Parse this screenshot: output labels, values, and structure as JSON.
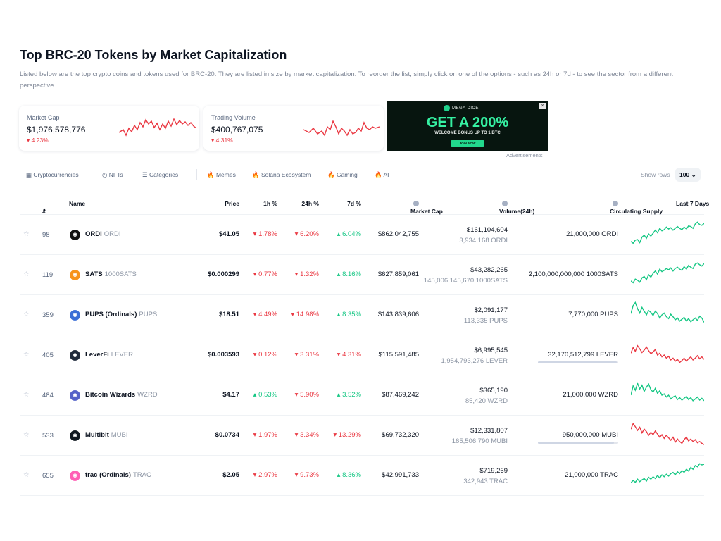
{
  "page": {
    "title": "Top BRC-20 Tokens by Market Capitalization",
    "description": "Listed below are the top crypto coins and tokens used for BRC-20. They are listed in size by market capitalization. To reorder the list, simply click on one of the options - such as 24h or 7d - to see the sector from a different perspective."
  },
  "stats": {
    "market_cap": {
      "label": "Market Cap",
      "value": "$1,976,578,776",
      "change": "4.23%",
      "direction": "down"
    },
    "trading_volume": {
      "label": "Trading Volume",
      "value": "$400,767,075",
      "change": "4.31%",
      "direction": "down"
    }
  },
  "ad": {
    "brand": "MEGA DICE",
    "headline": "GET A 200%",
    "subline": "WELCOME BONUS UP TO 1 BTC",
    "cta": "JOIN NOW",
    "label": "Advertisements"
  },
  "nav": {
    "items": [
      "Cryptocurrencies",
      "NFTs",
      "Categories",
      "Memes",
      "Solana Ecosystem",
      "Gaming",
      "AI"
    ],
    "show_rows_label": "Show rows",
    "rows_value": "100"
  },
  "table": {
    "headers": {
      "rank": "#",
      "name": "Name",
      "price": "Price",
      "h1": "1h %",
      "h24": "24h %",
      "d7": "7d %",
      "market_cap": "Market Cap",
      "volume": "Volume(24h)",
      "supply": "Circulating Supply",
      "last7": "Last 7 Days"
    },
    "rows": [
      {
        "rank": "98",
        "name": "ORDI",
        "symbol": "ORDI",
        "price": "$41.05",
        "h1": "1.78%",
        "h1_dir": "down",
        "h24": "6.20%",
        "h24_dir": "down",
        "d7": "6.04%",
        "d7_dir": "up",
        "market_cap": "$862,042,755",
        "volume": "$161,104,604",
        "volume_sub": "3,934,168 ORDI",
        "supply": "21,000,000 ORDI",
        "supply_fraction": null,
        "logo_color": "#111111",
        "trend": "up",
        "spark": [
          0.72,
          0.78,
          0.68,
          0.66,
          0.76,
          0.58,
          0.52,
          0.62,
          0.48,
          0.55,
          0.46,
          0.36,
          0.44,
          0.3,
          0.38,
          0.34,
          0.26,
          0.32,
          0.28,
          0.36,
          0.3,
          0.24,
          0.3,
          0.34,
          0.26,
          0.32,
          0.22,
          0.24,
          0.3,
          0.16,
          0.1,
          0.18,
          0.2,
          0.14
        ]
      },
      {
        "rank": "119",
        "name": "SATS",
        "symbol": "1000SATS",
        "price": "$0.000299",
        "h1": "0.77%",
        "h1_dir": "down",
        "h24": "1.32%",
        "h24_dir": "down",
        "d7": "8.16%",
        "d7_dir": "up",
        "market_cap": "$627,859,061",
        "volume": "$43,282,265",
        "volume_sub": "145,006,145,670 1000SATS",
        "supply": "2,100,000,000,000 1000SATS",
        "supply_fraction": null,
        "logo_color": "#f7931a",
        "trend": "up",
        "spark": [
          0.7,
          0.76,
          0.64,
          0.68,
          0.74,
          0.6,
          0.56,
          0.66,
          0.5,
          0.58,
          0.46,
          0.38,
          0.48,
          0.32,
          0.4,
          0.36,
          0.3,
          0.34,
          0.28,
          0.38,
          0.3,
          0.26,
          0.32,
          0.36,
          0.24,
          0.32,
          0.2,
          0.26,
          0.3,
          0.16,
          0.12,
          0.18,
          0.22,
          0.14
        ]
      },
      {
        "rank": "359",
        "name": "PUPS (Ordinals)",
        "symbol": "PUPS",
        "price": "$18.51",
        "h1": "4.49%",
        "h1_dir": "down",
        "h24": "14.98%",
        "h24_dir": "down",
        "d7": "8.35%",
        "d7_dir": "up",
        "market_cap": "$143,839,606",
        "volume": "$2,091,177",
        "volume_sub": "113,335 PUPS",
        "supply": "7,770,000 PUPS",
        "supply_fraction": null,
        "logo_color": "#3b6fd6",
        "trend": "up",
        "spark": [
          0.46,
          0.2,
          0.1,
          0.3,
          0.44,
          0.26,
          0.38,
          0.5,
          0.36,
          0.42,
          0.52,
          0.38,
          0.46,
          0.6,
          0.5,
          0.44,
          0.56,
          0.62,
          0.48,
          0.56,
          0.66,
          0.6,
          0.7,
          0.64,
          0.58,
          0.7,
          0.62,
          0.72,
          0.66,
          0.6,
          0.68,
          0.54,
          0.6,
          0.74
        ]
      },
      {
        "rank": "405",
        "name": "LeverFi",
        "symbol": "LEVER",
        "price": "$0.003593",
        "h1": "0.12%",
        "h1_dir": "down",
        "h24": "3.31%",
        "h24_dir": "down",
        "d7": "4.31%",
        "d7_dir": "down",
        "market_cap": "$115,591,485",
        "volume": "$6,995,545",
        "volume_sub": "1,954,793,276 LEVER",
        "supply": "32,170,512,799 LEVER",
        "supply_fraction": 0.98,
        "logo_color": "#202b3c",
        "trend": "down",
        "spark": [
          0.44,
          0.26,
          0.38,
          0.2,
          0.3,
          0.42,
          0.34,
          0.24,
          0.36,
          0.46,
          0.4,
          0.32,
          0.5,
          0.44,
          0.56,
          0.5,
          0.6,
          0.54,
          0.66,
          0.6,
          0.7,
          0.64,
          0.74,
          0.68,
          0.6,
          0.7,
          0.62,
          0.56,
          0.66,
          0.6,
          0.52,
          0.62,
          0.56,
          0.64
        ]
      },
      {
        "rank": "484",
        "name": "Bitcoin Wizards",
        "symbol": "WZRD",
        "price": "$4.17",
        "h1": "0.53%",
        "h1_dir": "up",
        "h24": "5.90%",
        "h24_dir": "down",
        "d7": "3.52%",
        "d7_dir": "up",
        "market_cap": "$87,469,242",
        "volume": "$365,190",
        "volume_sub": "85,420 WZRD",
        "supply": "21,000,000 WZRD",
        "supply_fraction": null,
        "logo_color": "#5563c8",
        "trend": "up",
        "spark": [
          0.5,
          0.2,
          0.34,
          0.12,
          0.3,
          0.18,
          0.38,
          0.24,
          0.14,
          0.32,
          0.4,
          0.28,
          0.44,
          0.36,
          0.5,
          0.46,
          0.56,
          0.5,
          0.62,
          0.56,
          0.52,
          0.64,
          0.58,
          0.66,
          0.6,
          0.54,
          0.64,
          0.58,
          0.68,
          0.62,
          0.56,
          0.66,
          0.6,
          0.68
        ]
      },
      {
        "rank": "533",
        "name": "Multibit",
        "symbol": "MUBI",
        "price": "$0.0734",
        "h1": "1.97%",
        "h1_dir": "down",
        "h24": "3.34%",
        "h24_dir": "down",
        "d7": "13.29%",
        "d7_dir": "down",
        "market_cap": "$69,732,320",
        "volume": "$12,331,807",
        "volume_sub": "165,506,790 MUBI",
        "supply": "950,000,000 MUBI",
        "supply_fraction": 0.95,
        "logo_color": "#101820",
        "trend": "down",
        "spark": [
          0.3,
          0.12,
          0.22,
          0.34,
          0.24,
          0.42,
          0.3,
          0.38,
          0.5,
          0.4,
          0.48,
          0.36,
          0.46,
          0.56,
          0.48,
          0.6,
          0.5,
          0.58,
          0.66,
          0.56,
          0.72,
          0.62,
          0.7,
          0.76,
          0.64,
          0.56,
          0.68,
          0.62,
          0.7,
          0.64,
          0.74,
          0.7,
          0.76,
          0.8
        ]
      },
      {
        "rank": "655",
        "name": "trac (Ordinals)",
        "symbol": "TRAC",
        "price": "$2.05",
        "h1": "2.97%",
        "h1_dir": "down",
        "h24": "9.73%",
        "h24_dir": "down",
        "d7": "8.36%",
        "d7_dir": "up",
        "market_cap": "$42,991,733",
        "volume": "$719,269",
        "volume_sub": "342,943 TRAC",
        "supply": "21,000,000 TRAC",
        "supply_fraction": null,
        "logo_color": "#ff5fb5",
        "trend": "up",
        "spark": [
          0.74,
          0.66,
          0.72,
          0.62,
          0.7,
          0.64,
          0.6,
          0.68,
          0.56,
          0.62,
          0.54,
          0.6,
          0.5,
          0.58,
          0.48,
          0.54,
          0.46,
          0.52,
          0.44,
          0.4,
          0.48,
          0.38,
          0.44,
          0.34,
          0.4,
          0.3,
          0.36,
          0.24,
          0.3,
          0.18,
          0.22,
          0.12,
          0.16,
          0.14
        ]
      }
    ]
  },
  "colors": {
    "up": "#16c784",
    "down": "#ea3943",
    "text": "#0d1421",
    "muted": "#8b94a3"
  }
}
